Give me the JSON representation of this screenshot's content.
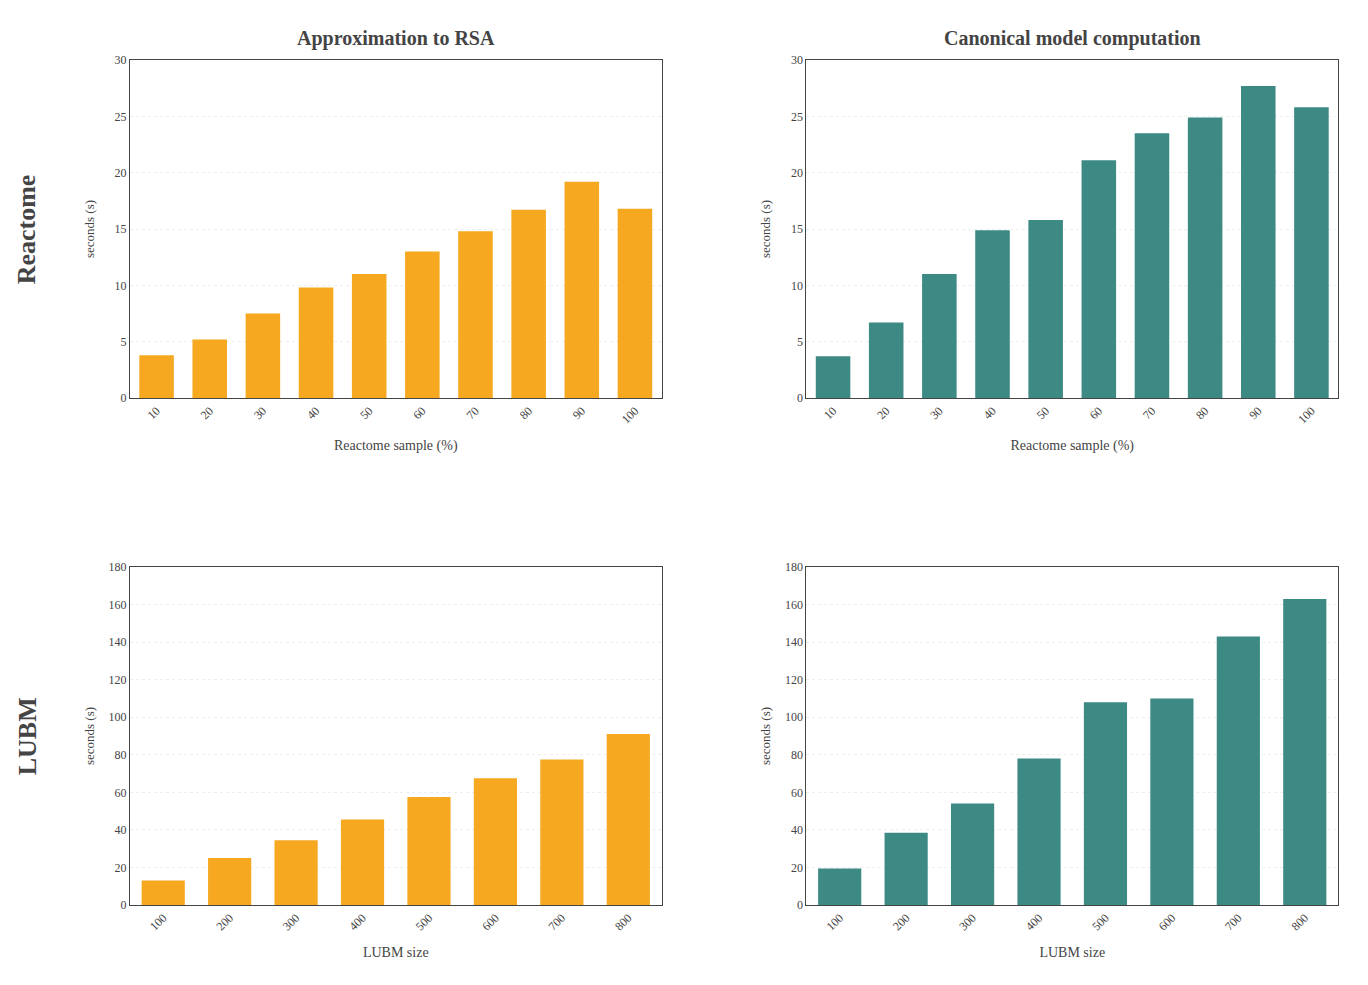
{
  "chart_data": [
    {
      "type": "bar",
      "title": "Approximation to RSA",
      "annotations": [
        {
          "text": "Reactome"
        }
      ],
      "xlabel": "Reactome sample (%)",
      "ylabel": "seconds (s)",
      "categories": [
        "10",
        "20",
        "30",
        "40",
        "50",
        "60",
        "70",
        "80",
        "90",
        "100"
      ],
      "values": [
        3.8,
        5.2,
        7.5,
        9.8,
        11.0,
        13.0,
        14.8,
        16.7,
        19.2,
        16.8
      ],
      "color": "#F5A820",
      "ylim": [
        0,
        30
      ],
      "yticks": [
        0,
        5,
        10,
        15,
        20,
        25,
        30
      ],
      "grid": true
    },
    {
      "type": "bar",
      "title": "Canonical model computation",
      "xlabel": "Reactome sample (%)",
      "ylabel": "seconds (s)",
      "categories": [
        "10",
        "20",
        "30",
        "40",
        "50",
        "60",
        "70",
        "80",
        "90",
        "100"
      ],
      "values": [
        3.7,
        6.7,
        11.0,
        14.9,
        15.8,
        21.1,
        23.5,
        24.9,
        27.7,
        25.8
      ],
      "color": "#3D8A85",
      "ylim": [
        0,
        30
      ],
      "yticks": [
        0,
        5,
        10,
        15,
        20,
        25,
        30
      ],
      "grid": true
    },
    {
      "type": "bar",
      "annotations": [
        {
          "text": "LUBM"
        }
      ],
      "xlabel": "LUBM size",
      "ylabel": "seconds (s)",
      "categories": [
        "100",
        "200",
        "300",
        "400",
        "500",
        "600",
        "700",
        "800"
      ],
      "values": [
        13.0,
        25.0,
        34.5,
        45.5,
        57.5,
        67.5,
        77.5,
        91.0
      ],
      "color": "#F5A820",
      "ylim": [
        0,
        180
      ],
      "yticks": [
        0,
        20,
        40,
        60,
        80,
        100,
        120,
        140,
        160,
        180
      ],
      "grid": true
    },
    {
      "type": "bar",
      "xlabel": "LUBM size",
      "ylabel": "seconds (s)",
      "categories": [
        "100",
        "200",
        "300",
        "400",
        "500",
        "600",
        "700",
        "800"
      ],
      "values": [
        19.5,
        38.5,
        54.0,
        78.0,
        108.0,
        110.0,
        143.0,
        163.0
      ],
      "color": "#3D8A85",
      "ylim": [
        0,
        180
      ],
      "yticks": [
        0,
        20,
        40,
        60,
        80,
        100,
        120,
        140,
        160,
        180
      ],
      "grid": true
    }
  ]
}
